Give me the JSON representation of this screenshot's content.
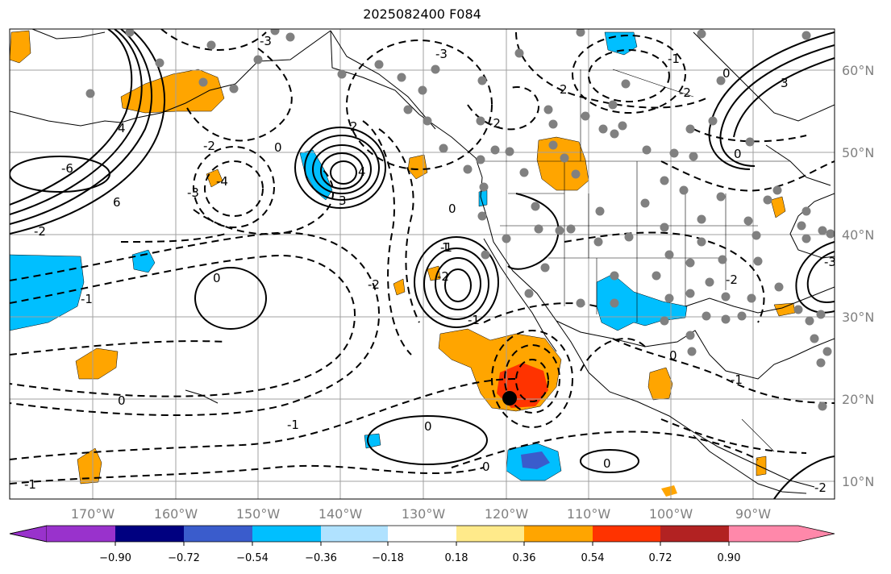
{
  "title": "2025082400 F084",
  "map": {
    "lon_labels": [
      "170°W",
      "160°W",
      "150°W",
      "140°W",
      "130°W",
      "120°W",
      "110°W",
      "100°W",
      "90°W"
    ],
    "lat_labels": [
      "60°N",
      "50°N",
      "40°N",
      "30°N",
      "20°N",
      "10°N"
    ],
    "contour_labels": [
      "-1",
      "0",
      "-1",
      "-2",
      "0",
      "-6",
      "6",
      "-2",
      "4",
      "-3",
      "-4",
      "-3",
      "3",
      "-2",
      "0",
      "-1",
      "4",
      "2",
      "-3",
      "-2",
      "0",
      "0",
      "-1",
      "-2",
      "2",
      "3",
      "0",
      "-1",
      "-2",
      "0",
      "0",
      "-1",
      "0",
      "0",
      "-1",
      "-3",
      "1",
      "-2",
      "-2"
    ],
    "colors": {
      "ocean": "#ffffff",
      "contour": "#000000",
      "station": "#808080",
      "grid": "#a0a0a0"
    }
  },
  "colorbar": {
    "ticks": [
      "−0.90",
      "−0.72",
      "−0.54",
      "−0.36",
      "−0.18",
      "0.18",
      "0.36",
      "0.54",
      "0.72",
      "0.90"
    ],
    "colors": [
      "#9932cc",
      "#000080",
      "#3a5ccc",
      "#00bfff",
      "#b0e2ff",
      "#ffffff",
      "#ffea8a",
      "#ffa500",
      "#ff3300",
      "#b22222",
      "#ff88aa"
    ]
  }
}
